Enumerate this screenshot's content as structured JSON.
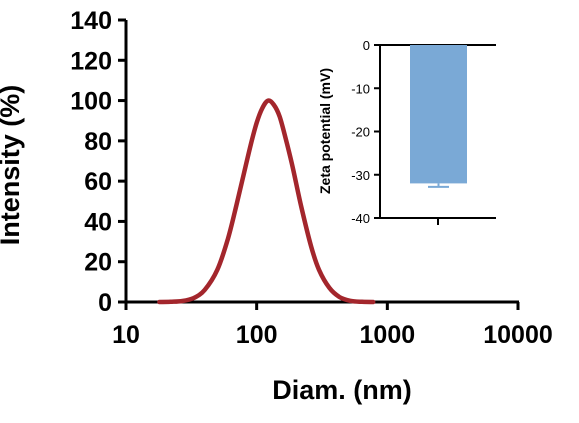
{
  "chart_data": [
    {
      "type": "line",
      "xlabel": "Diam. (nm)",
      "ylabel": "Intensity (%)",
      "xscale": "log",
      "xlim": [
        10,
        10000
      ],
      "ylim": [
        0,
        140
      ],
      "x_ticks": [
        "10",
        "100",
        "1000",
        "10000"
      ],
      "y_ticks": [
        "0",
        "20",
        "40",
        "60",
        "80",
        "100",
        "120",
        "140"
      ],
      "grid": false,
      "colors": {
        "line": "#A3262C"
      },
      "series": [
        {
          "x": [
            18,
            22,
            27,
            33,
            40,
            50,
            60,
            70,
            80,
            90,
            100,
            110,
            122,
            135,
            150,
            170,
            190,
            220,
            260,
            300,
            360,
            430,
            520,
            640,
            780
          ],
          "y": [
            0,
            0.1,
            0.5,
            2,
            6,
            16,
            31,
            48,
            64,
            78,
            89,
            96,
            100,
            98,
            92,
            79,
            66,
            47,
            28,
            16,
            7,
            2.5,
            0.6,
            0.1,
            0
          ]
        }
      ]
    },
    {
      "type": "bar",
      "categories": [
        ""
      ],
      "ylabel": "Zeta potential (mV)",
      "ylim": [
        -40,
        0
      ],
      "y_ticks": [
        "0",
        "-10",
        "-20",
        "-30",
        "-40"
      ],
      "values": [
        -32
      ],
      "error": [
        0.8
      ],
      "colors": {
        "bar": "#7AA9D6"
      }
    }
  ]
}
